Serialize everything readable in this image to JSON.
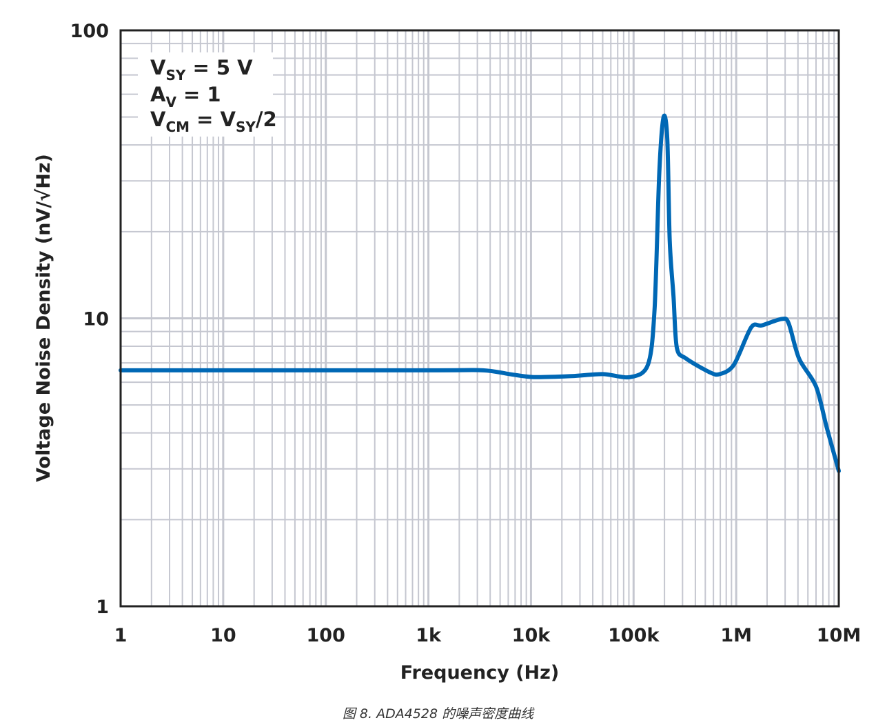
{
  "chart_data": {
    "type": "line",
    "title": "",
    "xlabel": "Frequency (Hz)",
    "ylabel": "Voltage Noise Density (nV/√Hz)",
    "xscale": "log",
    "yscale": "log",
    "xlim": [
      1,
      10000000
    ],
    "ylim": [
      1,
      100
    ],
    "grid": true,
    "x_ticks": [
      1,
      10,
      100,
      1000,
      10000,
      100000,
      1000000,
      10000000
    ],
    "x_tick_labels": [
      "1",
      "10",
      "100",
      "1k",
      "10k",
      "100k",
      "1M",
      "10M"
    ],
    "y_ticks": [
      1,
      10,
      100
    ],
    "y_tick_labels": [
      "1",
      "10",
      "100"
    ],
    "legend_placement": "top-left",
    "annotation": [
      {
        "main": "V",
        "sub": "SY",
        "rest": " = 5 V"
      },
      {
        "main": "A",
        "sub": "V",
        "rest": " = 1"
      },
      {
        "main": "V",
        "sub": "CM",
        "rest": " = V",
        "sub2": "SY",
        "rest2": "/2"
      }
    ],
    "series": [
      {
        "color": "#0068b5",
        "x": [
          1,
          1000,
          3400,
          6200,
          10700,
          25000,
          50000,
          93000,
          138000,
          160000,
          178000,
          196000,
          213000,
          225000,
          245000,
          264000,
          325000,
          550000,
          690000,
          950000,
          1400000,
          1780000,
          2800000,
          3250000,
          4100000,
          6000000,
          7600000,
          10000000
        ],
        "y": [
          6.6,
          6.6,
          6.6,
          6.4,
          6.25,
          6.3,
          6.4,
          6.25,
          6.9,
          10.7,
          32,
          50,
          42,
          18.6,
          11.9,
          7.9,
          7.25,
          6.5,
          6.4,
          6.9,
          9.3,
          9.45,
          9.95,
          9.6,
          7.25,
          5.8,
          4.2,
          2.95
        ]
      }
    ]
  },
  "caption": "图 8. ADA4528 的噪声密度曲线"
}
